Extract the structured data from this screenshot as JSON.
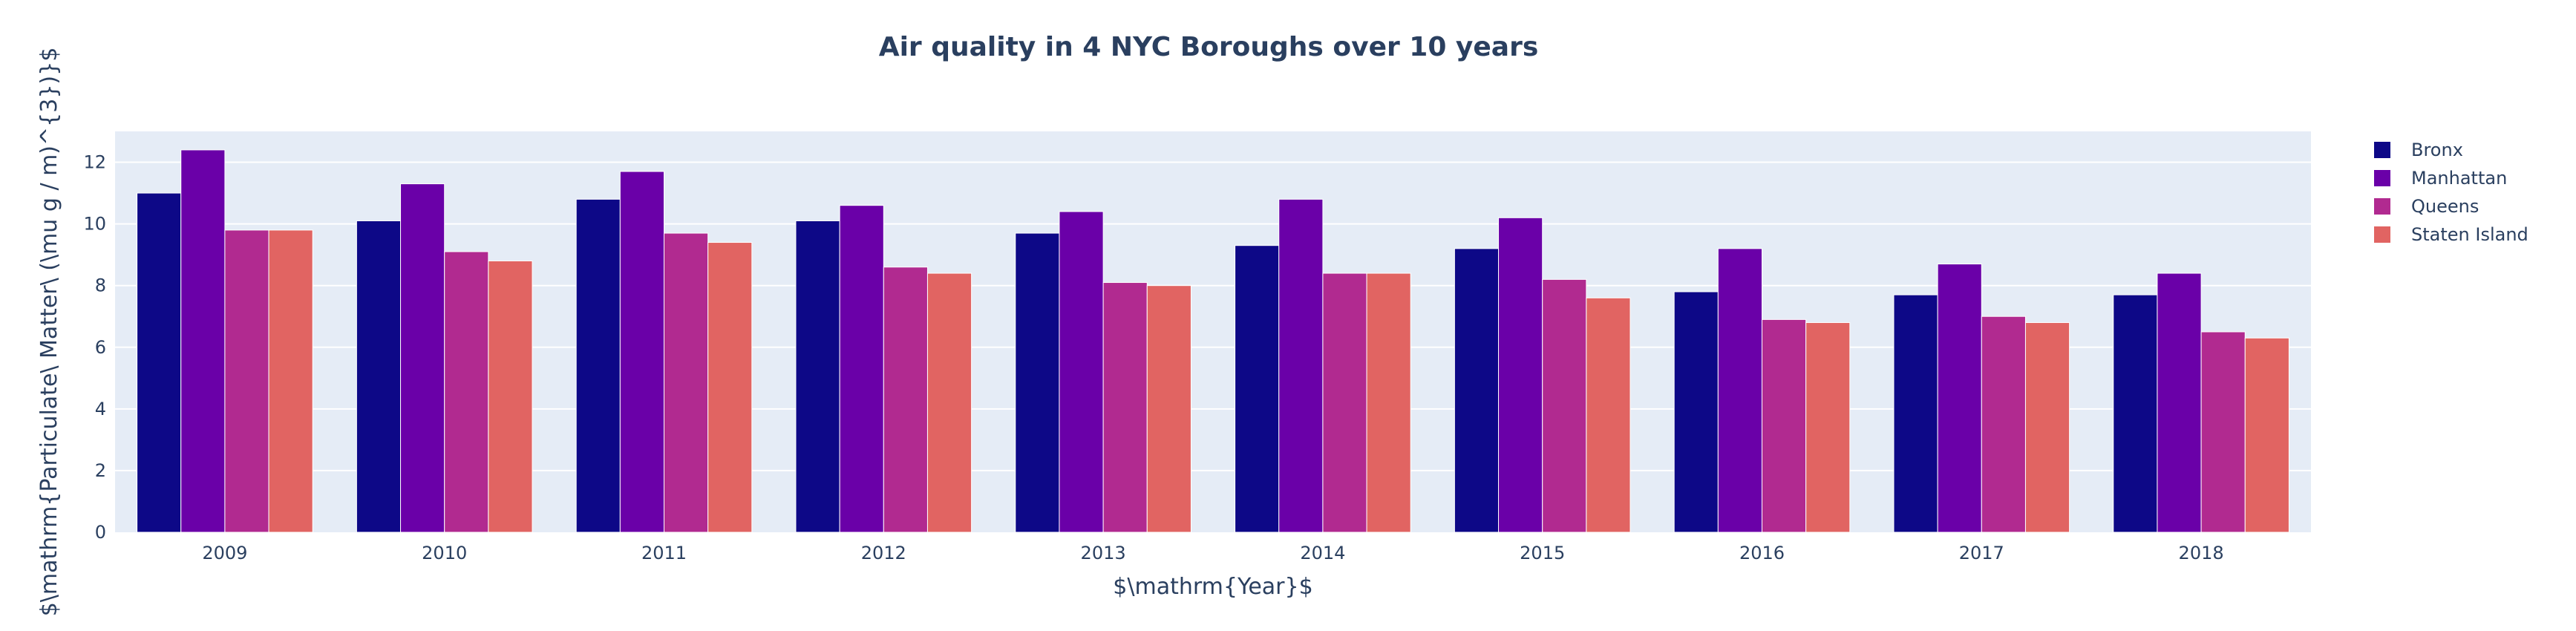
{
  "chart_data": {
    "type": "bar",
    "title": "Air quality in 4 NYC Boroughs over 10 years",
    "xlabel": "$\\mathrm{Year}$",
    "ylabel": "$\\mathrm{Particulate\\ Matter\\ (\\mu g / m)^{3})}$",
    "categories": [
      "2009",
      "2010",
      "2011",
      "2012",
      "2013",
      "2014",
      "2015",
      "2016",
      "2017",
      "2018"
    ],
    "ylim": [
      0,
      13
    ],
    "yticks": [
      0,
      2,
      4,
      6,
      8,
      10,
      12
    ],
    "grid": true,
    "legend_position": "top-right",
    "plot_background": "#e5ecf6",
    "series": [
      {
        "name": "Bronx",
        "color": "#0d0887",
        "values": [
          11.0,
          10.1,
          10.8,
          10.1,
          9.7,
          9.3,
          9.2,
          7.8,
          7.7,
          7.7
        ]
      },
      {
        "name": "Manhattan",
        "color": "#6a00a8",
        "values": [
          12.4,
          11.3,
          11.7,
          10.6,
          10.4,
          10.8,
          10.2,
          9.2,
          8.7,
          8.4
        ]
      },
      {
        "name": "Queens",
        "color": "#b12a90",
        "values": [
          9.8,
          9.1,
          9.7,
          8.6,
          8.1,
          8.4,
          8.2,
          6.9,
          7.0,
          6.5
        ]
      },
      {
        "name": "Staten Island",
        "color": "#e16462",
        "values": [
          9.8,
          8.8,
          9.4,
          8.4,
          8.0,
          8.4,
          7.6,
          6.8,
          6.8,
          6.3
        ]
      }
    ]
  }
}
